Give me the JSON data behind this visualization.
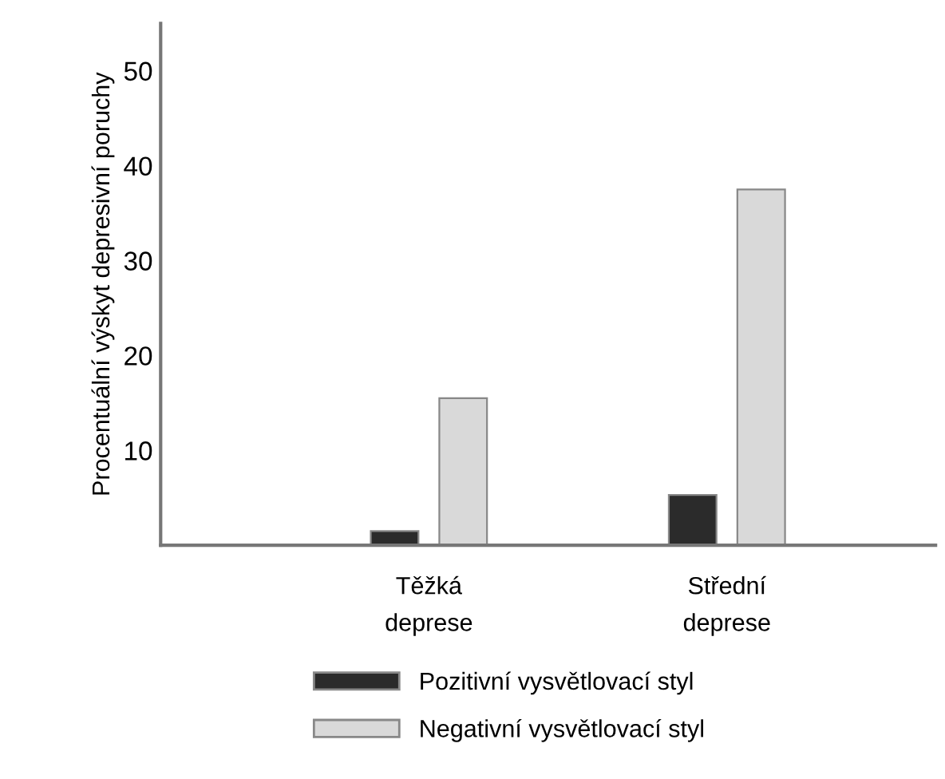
{
  "chart_data": {
    "type": "bar",
    "ylabel": "Procentuální výskyt depresivní poruchy",
    "categories": [
      "Těžká\ndeprese",
      "Střední\ndeprese"
    ],
    "series": [
      {
        "name": "Pozitivní vysvětlovací styl",
        "color": "#2b2b2b",
        "values": [
          1.5,
          5.3
        ]
      },
      {
        "name": "Negativní vysvětlovací styl",
        "color": "#d9d9d9",
        "values": [
          15.5,
          37.5
        ]
      }
    ],
    "ylim": [
      0,
      55
    ],
    "yticks": [
      10,
      20,
      30,
      40,
      50
    ],
    "grid": false,
    "legend": "bottom"
  }
}
